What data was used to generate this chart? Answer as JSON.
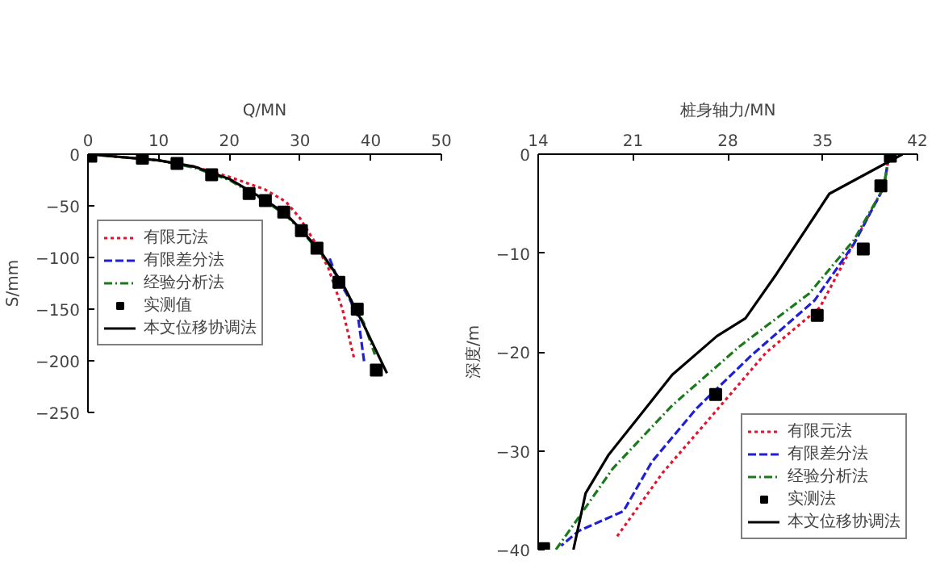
{
  "chart_data": [
    {
      "type": "line",
      "xlabel": "Q/MN",
      "ylabel": "S/mm",
      "xlim": [
        0,
        50
      ],
      "xticks": [
        0,
        10,
        20,
        30,
        40,
        50
      ],
      "ylim": [
        -250,
        0
      ],
      "yticks": [
        0,
        -50,
        -100,
        -150,
        -200,
        -250
      ],
      "grid": false,
      "legend": "left",
      "series": [
        {
          "name": "有限元法",
          "color": "#e8102a",
          "line_style": "dotted",
          "x": [
            0,
            10,
            15,
            20,
            25,
            28,
            30,
            32,
            34,
            36,
            37.7
          ],
          "values": [
            0,
            -6,
            -12,
            -22,
            -34,
            -46,
            -62,
            -84,
            -110,
            -150,
            -199
          ]
        },
        {
          "name": "有限差分法",
          "color": "#1f1fd8",
          "line_style": "dashed",
          "x": [
            34.2,
            35.2,
            37,
            38.2,
            39.1
          ],
          "values": [
            -101,
            -119,
            -140,
            -157,
            -202
          ]
        },
        {
          "name": "经验分析法",
          "color": "#1a7a1a",
          "line_style": "dashdot",
          "x": [
            0,
            10,
            15,
            20,
            25,
            28,
            30,
            33,
            36,
            39,
            40.6
          ],
          "values": [
            0,
            -6,
            -13,
            -25,
            -45,
            -59,
            -73,
            -96,
            -126,
            -163,
            -194
          ]
        },
        {
          "name": "实测值",
          "type": "scatter",
          "marker": "square",
          "color": "#000000",
          "x": [
            0.4,
            7.7,
            12.6,
            17.5,
            22.8,
            25.1,
            27.7,
            30.2,
            32.4,
            35.5,
            38.1,
            40.8
          ],
          "values": [
            -2,
            -4,
            -9,
            -20,
            -38,
            -45,
            -56,
            -74,
            -91,
            -124,
            -150,
            -209
          ]
        },
        {
          "name": "本文位移协调法",
          "color": "#000000",
          "line_style": "solid",
          "x": [
            0,
            10,
            15,
            20,
            25,
            28,
            30,
            33,
            36,
            39,
            42.3
          ],
          "values": [
            0,
            -6,
            -12,
            -24,
            -44,
            -58,
            -72,
            -95,
            -125,
            -165,
            -212
          ]
        }
      ]
    },
    {
      "type": "line",
      "xlabel": "桩身轴力/MN",
      "ylabel": "深度/m",
      "xlim": [
        14,
        42
      ],
      "xticks": [
        14,
        21,
        28,
        35,
        42
      ],
      "ylim": [
        -40,
        0
      ],
      "yticks": [
        0,
        -10,
        -20,
        -30,
        -40
      ],
      "grid": false,
      "legend": "bottom right",
      "series": [
        {
          "name": "有限元法",
          "color": "#e8102a",
          "line_style": "dotted",
          "x": [
            39.9,
            39.5,
            37,
            34.8,
            30.8,
            26.8,
            23.2,
            19.7
          ],
          "values": [
            -0.2,
            -3.4,
            -9.8,
            -15.5,
            -20.1,
            -26.5,
            -32.2,
            -38.9
          ]
        },
        {
          "name": "有限差分法",
          "color": "#1f1fd8",
          "line_style": "dashed",
          "x": [
            39.9,
            39.5,
            37.3,
            34.4,
            29.7,
            25.7,
            22.4,
            20.3,
            17,
            15.7
          ],
          "values": [
            -0.2,
            -3.4,
            -9.1,
            -14.8,
            -20.4,
            -25.7,
            -31.1,
            -36.1,
            -38.1,
            -39.6
          ]
        },
        {
          "name": "经验分析法",
          "color": "#1a7a1a",
          "line_style": "dashdot",
          "x": [
            39.9,
            39.5,
            37.3,
            34,
            28.9,
            23.9,
            19.5,
            16.6,
            15.3
          ],
          "values": [
            -0.2,
            -3.4,
            -8.7,
            -14.1,
            -19.4,
            -25.4,
            -31.8,
            -37.5,
            -40
          ]
        },
        {
          "name": "实测法",
          "type": "scatter",
          "marker": "square",
          "color": "#000000",
          "x": [
            14.4,
            27.1,
            34.6,
            38,
            39.3,
            40
          ],
          "values": [
            -39.9,
            -24.3,
            -16.3,
            -9.6,
            -3.2,
            -0.2
          ]
        },
        {
          "name": "本文位移协调法",
          "color": "#000000",
          "line_style": "solid",
          "x": [
            40.9,
            35.5,
            31.6,
            29.3,
            27.2,
            23.9,
            21.3,
            19.2,
            17.5,
            16.6
          ],
          "values": [
            0,
            -4,
            -12.1,
            -16.6,
            -18.4,
            -22.3,
            -26.8,
            -30.4,
            -34.3,
            -40
          ]
        }
      ]
    }
  ]
}
